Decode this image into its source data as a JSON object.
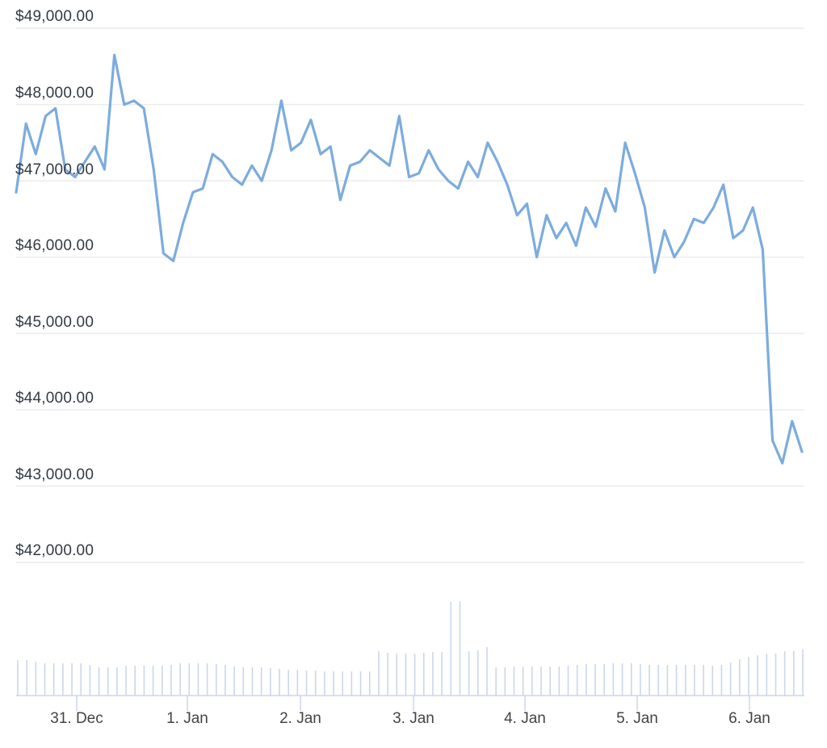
{
  "chart_data": {
    "type": "line",
    "title": "",
    "xlabel": "",
    "ylabel": "",
    "ylim": [
      42000,
      49000
    ],
    "grid": true,
    "legend": "none",
    "line_color": "#7cacde",
    "volume_color": "#ccd6eb",
    "y_ticks": [
      "$49,000.00",
      "$48,000.00",
      "$47,000.00",
      "$46,000.00",
      "$45,000.00",
      "$44,000.00",
      "$43,000.00",
      "$42,000.00"
    ],
    "x_ticks": [
      "31. Dec",
      "1. Jan",
      "2. Jan",
      "3. Jan",
      "4. Jan",
      "5. Jan",
      "6. Jan"
    ],
    "series": [
      {
        "name": "Price",
        "x": [
          "30 Dec 18:00",
          "30 Dec 20:00",
          "30 Dec 22:00",
          "31 Dec 00:00",
          "31 Dec 02:00",
          "31 Dec 04:00",
          "31 Dec 06:00",
          "31 Dec 08:00",
          "31 Dec 10:00",
          "31 Dec 12:00",
          "31 Dec 14:00",
          "31 Dec 16:00",
          "31 Dec 18:00",
          "31 Dec 20:00",
          "31 Dec 22:00",
          "1 Jan 00:00",
          "1 Jan 02:00",
          "1 Jan 04:00",
          "1 Jan 06:00",
          "1 Jan 08:00",
          "1 Jan 10:00",
          "1 Jan 12:00",
          "1 Jan 14:00",
          "1 Jan 16:00",
          "1 Jan 18:00",
          "1 Jan 20:00",
          "1 Jan 22:00",
          "2 Jan 00:00",
          "2 Jan 02:00",
          "2 Jan 04:00",
          "2 Jan 06:00",
          "2 Jan 08:00",
          "2 Jan 10:00",
          "2 Jan 12:00",
          "2 Jan 14:00",
          "2 Jan 16:00",
          "2 Jan 18:00",
          "2 Jan 20:00",
          "2 Jan 22:00",
          "3 Jan 00:00",
          "3 Jan 02:00",
          "3 Jan 04:00",
          "3 Jan 06:00",
          "3 Jan 08:00",
          "3 Jan 10:00",
          "3 Jan 12:00",
          "3 Jan 14:00",
          "3 Jan 16:00",
          "3 Jan 18:00",
          "3 Jan 20:00",
          "3 Jan 22:00",
          "4 Jan 00:00",
          "4 Jan 02:00",
          "4 Jan 04:00",
          "4 Jan 06:00",
          "4 Jan 08:00",
          "4 Jan 10:00",
          "4 Jan 12:00",
          "4 Jan 14:00",
          "4 Jan 16:00",
          "4 Jan 18:00",
          "4 Jan 20:00",
          "4 Jan 22:00",
          "5 Jan 00:00",
          "5 Jan 02:00",
          "5 Jan 04:00",
          "5 Jan 06:00",
          "5 Jan 08:00",
          "5 Jan 10:00",
          "5 Jan 12:00",
          "5 Jan 14:00",
          "5 Jan 16:00",
          "5 Jan 18:00",
          "5 Jan 20:00",
          "5 Jan 22:00",
          "6 Jan 00:00",
          "6 Jan 02:00",
          "6 Jan 04:00",
          "6 Jan 06:00",
          "6 Jan 08:00",
          "6 Jan 10:00"
        ],
        "values": [
          46850,
          47750,
          47350,
          47850,
          47950,
          47150,
          47050,
          47250,
          47450,
          47150,
          48650,
          48000,
          48050,
          47950,
          47150,
          46050,
          45950,
          46450,
          46850,
          46900,
          47350,
          47250,
          47050,
          46950,
          47200,
          47000,
          47400,
          48050,
          47400,
          47500,
          47800,
          47350,
          47450,
          46750,
          47200,
          47250,
          47400,
          47300,
          47200,
          47850,
          47050,
          47100,
          47400,
          47150,
          47000,
          46900,
          47250,
          47050,
          47500,
          47250,
          46950,
          46550,
          46700,
          46000,
          46550,
          46250,
          46450,
          46150,
          46650,
          46400,
          46900,
          46600,
          47500,
          47100,
          46650,
          45800,
          46350,
          46000,
          46200,
          46500,
          46450,
          46650,
          46950,
          46250,
          46350,
          46650,
          46100,
          43600,
          43300,
          43850,
          43450
        ]
      },
      {
        "name": "Volume",
        "type": "column",
        "relative_heights": [
          44,
          44,
          42,
          40,
          40,
          40,
          40,
          40,
          38,
          35,
          35,
          35,
          37,
          37,
          37,
          37,
          37,
          38,
          40,
          40,
          40,
          40,
          39,
          38,
          36,
          35,
          35,
          35,
          34,
          33,
          32,
          32,
          31,
          31,
          30,
          30,
          30,
          30,
          30,
          30,
          55,
          53,
          52,
          52,
          52,
          53,
          54,
          54,
          116,
          117,
          55,
          56,
          60,
          35,
          35,
          36,
          36,
          36,
          36,
          36,
          36,
          37,
          38,
          39,
          39,
          39,
          40,
          40,
          40,
          39,
          38,
          38,
          38,
          38,
          38,
          38,
          38,
          37,
          38,
          41,
          45,
          48,
          50,
          52,
          52,
          55,
          55,
          57
        ]
      }
    ]
  }
}
